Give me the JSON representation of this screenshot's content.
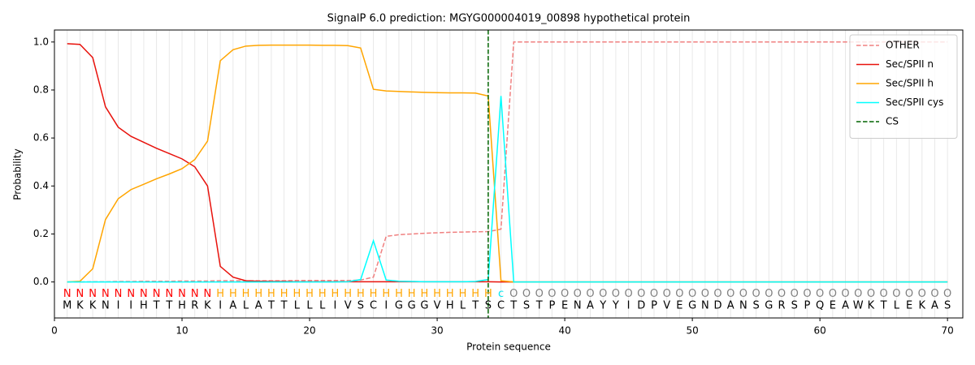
{
  "chart_data": {
    "type": "line",
    "title": "SignalP 6.0 prediction: MGYG000004019_00898 hypothetical protein",
    "x_label": "Protein sequence",
    "y_label": "Probability",
    "xlim": [
      0,
      71.2
    ],
    "ylim": [
      -0.15,
      1.05
    ],
    "xticks": [
      0,
      10,
      20,
      30,
      40,
      50,
      60,
      70
    ],
    "yticks": [
      {
        "value": 0,
        "label": "0.0"
      },
      0.2,
      0.4,
      0.6,
      0.8,
      {
        "value": 1,
        "label": "1.0"
      }
    ],
    "vgrid": true,
    "legend": "upper right",
    "x": [
      1,
      2,
      3,
      4,
      5,
      6,
      7,
      8,
      9,
      10,
      11,
      12,
      13,
      14,
      15,
      16,
      17,
      18,
      19,
      20,
      21,
      22,
      23,
      24,
      25,
      26,
      27,
      28,
      29,
      30,
      31,
      32,
      33,
      34,
      35,
      36,
      37,
      38,
      39,
      40,
      41,
      42,
      43,
      44,
      45,
      46,
      47,
      48,
      49,
      50,
      51,
      52,
      53,
      54,
      55,
      56,
      57,
      58,
      59,
      60,
      61,
      62,
      63,
      64,
      65,
      66,
      67,
      68,
      69,
      70
    ],
    "series": [
      {
        "name": "OTHER",
        "color": "#f08080",
        "dashed": true,
        "values": [
          0,
          0,
          0.001,
          0.001,
          0.002,
          0.002,
          0.003,
          0.003,
          0.003,
          0.004,
          0.004,
          0.004,
          0.005,
          0.005,
          0.005,
          0.005,
          0.005,
          0.005,
          0.006,
          0.006,
          0.006,
          0.006,
          0.006,
          0.008,
          0.02,
          0.19,
          0.197,
          0.2,
          0.203,
          0.205,
          0.207,
          0.208,
          0.209,
          0.21,
          0.22,
          1,
          1,
          1,
          1,
          1,
          1,
          1,
          1,
          1,
          1,
          1,
          1,
          1,
          1,
          1,
          1,
          1,
          1,
          1,
          1,
          1,
          1,
          1,
          1,
          1,
          1,
          1,
          1,
          1,
          1,
          1,
          1,
          1,
          1,
          1
        ]
      },
      {
        "name": "Sec/SPII n",
        "color": "#e8120c",
        "dashed": false,
        "values": [
          0.993,
          0.99,
          0.935,
          0.73,
          0.645,
          0.607,
          0.582,
          0.557,
          0.535,
          0.513,
          0.48,
          0.4,
          0.065,
          0.02,
          0.005,
          0.003,
          0.002,
          0.002,
          0.001,
          0.001,
          0.001,
          0.001,
          0.001,
          0.001,
          0.001,
          0.001,
          0.001,
          0.001,
          0.001,
          0.001,
          0.001,
          0.001,
          0.001,
          0.001,
          0,
          0,
          0,
          0,
          0,
          0,
          0,
          0,
          0,
          0,
          0,
          0,
          0,
          0,
          0,
          0,
          0,
          0,
          0,
          0,
          0,
          0,
          0,
          0,
          0,
          0,
          0,
          0,
          0,
          0,
          0,
          0,
          0,
          0,
          0,
          0
        ]
      },
      {
        "name": "Sec/SPII h",
        "color": "#ffa500",
        "dashed": false,
        "values": [
          0,
          0.003,
          0.055,
          0.26,
          0.347,
          0.385,
          0.407,
          0.43,
          0.45,
          0.472,
          0.51,
          0.587,
          0.922,
          0.968,
          0.983,
          0.986,
          0.987,
          0.987,
          0.987,
          0.987,
          0.986,
          0.986,
          0.985,
          0.975,
          0.803,
          0.796,
          0.794,
          0.792,
          0.79,
          0.789,
          0.788,
          0.788,
          0.787,
          0.775,
          0.005,
          0,
          0,
          0,
          0,
          0,
          0,
          0,
          0,
          0,
          0,
          0,
          0,
          0,
          0,
          0,
          0,
          0,
          0,
          0,
          0,
          0,
          0,
          0,
          0,
          0,
          0,
          0,
          0,
          0,
          0,
          0,
          0,
          0,
          0,
          0
        ]
      },
      {
        "name": "Sec/SPII cys",
        "color": "#00ffff",
        "dashed": false,
        "values": [
          0,
          0,
          0,
          0,
          0,
          0,
          0,
          0,
          0,
          0,
          0,
          0,
          0,
          0,
          0,
          0,
          0,
          0,
          0,
          0,
          0,
          0,
          0.001,
          0.01,
          0.172,
          0.008,
          0.003,
          0.002,
          0.001,
          0.001,
          0.001,
          0.001,
          0.002,
          0.01,
          0.775,
          0,
          0,
          0,
          0,
          0,
          0,
          0,
          0,
          0,
          0,
          0,
          0,
          0,
          0,
          0,
          0,
          0,
          0,
          0,
          0,
          0,
          0,
          0,
          0,
          0,
          0,
          0,
          0,
          0,
          0,
          0,
          0,
          0,
          0,
          0
        ]
      }
    ],
    "cs": {
      "name": "CS",
      "x": 34,
      "color": "#006400"
    },
    "annotations": [
      "N",
      "N",
      "N",
      "N",
      "N",
      "N",
      "N",
      "N",
      "N",
      "N",
      "N",
      "N",
      "H",
      "H",
      "H",
      "H",
      "H",
      "H",
      "H",
      "H",
      "H",
      "H",
      "H",
      "H",
      "H",
      "H",
      "H",
      "H",
      "H",
      "H",
      "H",
      "H",
      "H",
      "H",
      "c",
      "O",
      "O",
      "O",
      "O",
      "O",
      "O",
      "O",
      "O",
      "O",
      "O",
      "O",
      "O",
      "O",
      "O",
      "O",
      "O",
      "O",
      "O",
      "O",
      "O",
      "O",
      "O",
      "O",
      "O",
      "O",
      "O",
      "O",
      "O",
      "O",
      "O",
      "O",
      "O",
      "O",
      "O",
      "O"
    ],
    "annotation_colors": {
      "N": "#ff0000",
      "H": "#ffa500",
      "c": "#00e5ee",
      "O": "#808080"
    },
    "sequence": [
      "M",
      "K",
      "K",
      "N",
      "I",
      "I",
      "H",
      "T",
      "T",
      "H",
      "R",
      "K",
      "I",
      "A",
      "L",
      "A",
      "T",
      "T",
      "L",
      "L",
      "L",
      "I",
      "V",
      "S",
      "C",
      "I",
      "G",
      "G",
      "G",
      "V",
      "H",
      "L",
      "T",
      "S",
      "C",
      "T",
      "S",
      "T",
      "P",
      "E",
      "N",
      "A",
      "Y",
      "Y",
      "I",
      "D",
      "P",
      "V",
      "E",
      "G",
      "N",
      "D",
      "A",
      "N",
      "S",
      "G",
      "R",
      "S",
      "P",
      "Q",
      "E",
      "A",
      "W",
      "K",
      "T",
      "L",
      "E",
      "K",
      "A",
      "S"
    ]
  }
}
